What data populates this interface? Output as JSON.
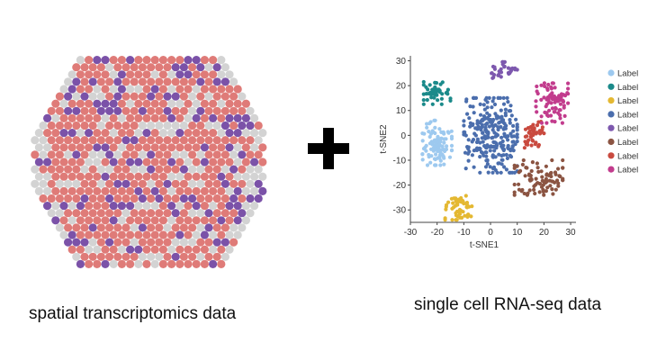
{
  "captions": {
    "spatial": "spatial transcriptomics data",
    "single_cell": "single cell RNA-seq data"
  },
  "operator_icon": "plus-icon",
  "spatial_colors": {
    "red": "#df7b78",
    "purple": "#7b52a8",
    "gray": "#d3d3d3"
  },
  "chart_data": {
    "type": "scatter",
    "title": "",
    "xlabel": "t-SNE1",
    "ylabel": "t-SNE2",
    "xlim": [
      -30,
      32
    ],
    "ylim": [
      -35,
      32
    ],
    "xticks": [
      -30,
      -20,
      -10,
      0,
      10,
      20,
      30
    ],
    "yticks": [
      -30,
      -20,
      -10,
      0,
      10,
      20,
      30
    ],
    "legend_position": "right",
    "series": [
      {
        "name": "Label",
        "color": "#9dc9ef",
        "cx": -20,
        "cy": -3,
        "rx": 5.5,
        "ry": 9,
        "n": 110
      },
      {
        "name": "Label",
        "color": "#1b8a8a",
        "cx": -20,
        "cy": 17,
        "rx": 5,
        "ry": 4.5,
        "n": 50
      },
      {
        "name": "Label",
        "color": "#e4b832",
        "cx": -12,
        "cy": -29,
        "rx": 5,
        "ry": 5,
        "n": 55
      },
      {
        "name": "Label",
        "color": "#4b6ead",
        "cx": 0,
        "cy": 0,
        "rx": 10,
        "ry": 15,
        "n": 260
      },
      {
        "name": "Label",
        "color": "#7d58ae",
        "cx": 5,
        "cy": 26,
        "rx": 5,
        "ry": 3.5,
        "n": 35
      },
      {
        "name": "Label",
        "color": "#8b5442",
        "cx": 18,
        "cy": -17,
        "rx": 9,
        "ry": 7,
        "n": 90
      },
      {
        "name": "Label",
        "color": "#c94a3f",
        "cx": 16,
        "cy": 1,
        "rx": 4,
        "ry": 6,
        "n": 45
      },
      {
        "name": "Label",
        "color": "#c23c8d",
        "cx": 23,
        "cy": 13,
        "rx": 6,
        "ry": 8,
        "n": 85
      }
    ]
  }
}
